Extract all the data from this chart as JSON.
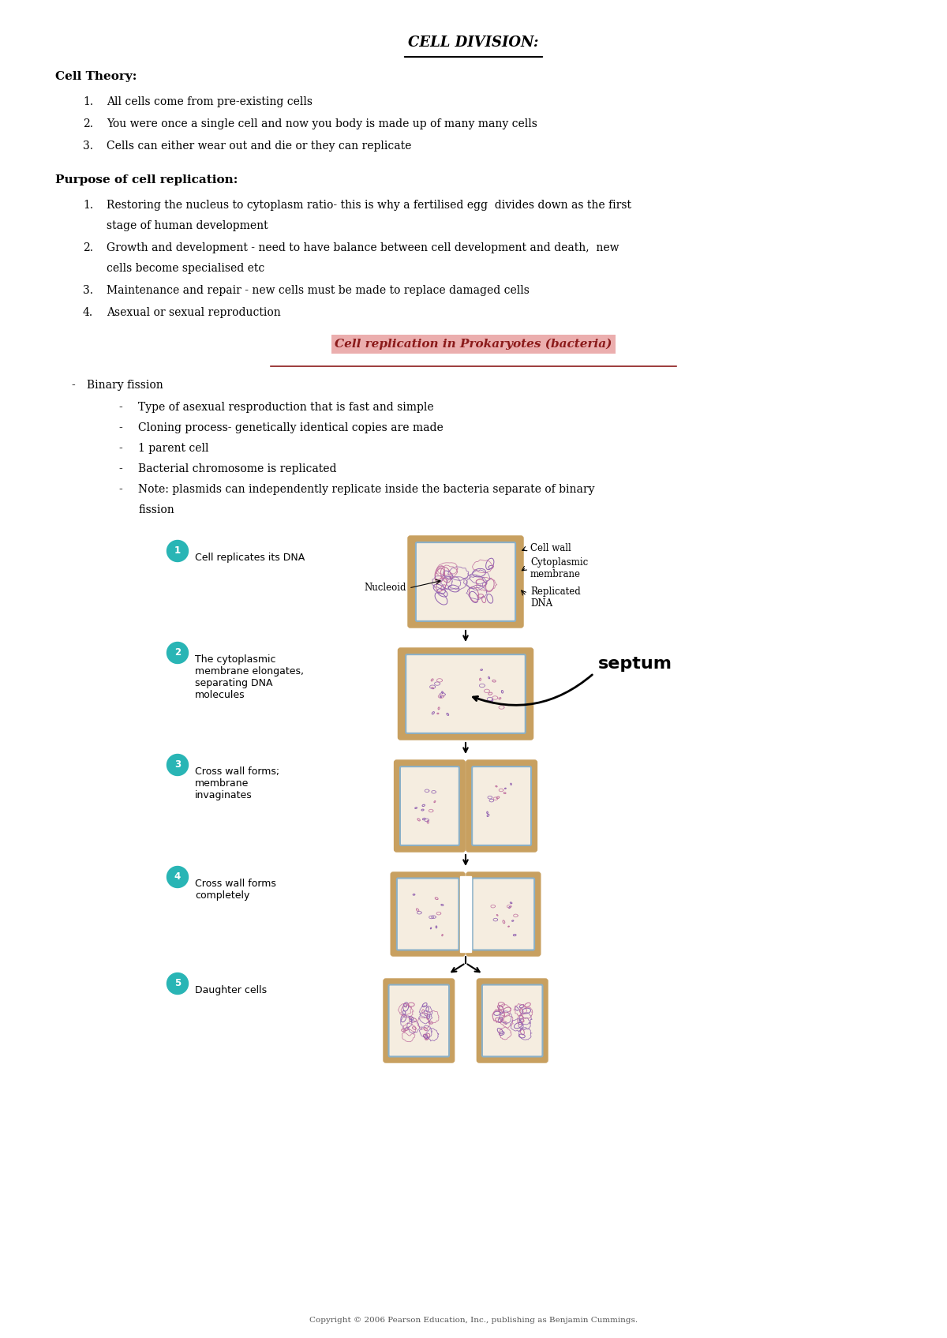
{
  "title": "CELL DIVISION:",
  "bg_color": "#ffffff",
  "cell_theory_header": "Cell Theory:",
  "cell_theory_items": [
    "All cells come from pre-existing cells",
    "You were once a single cell and now you body is made up of many many cells",
    "Cells can either wear out and die or they can replicate"
  ],
  "purpose_header": "Purpose of cell replication:",
  "purpose_items": [
    "Restoring the nucleus to cytoplasm ratio- this is why a fertilised egg  divides down as the first\nstage of human development",
    "Growth and development - need to have balance between cell development and death,  new\ncells become specialised etc",
    "Maintenance and repair - new cells must be made to replace damaged cells",
    "Asexual or sexual reproduction"
  ],
  "prokaryotes_title": "Cell replication in Prokaryotes (bacteria)",
  "prokaryotes_bg": "#e8a0a0",
  "binary_fission_header": "Binary fission",
  "binary_fission_items": [
    "Type of asexual resproduction that is fast and simple",
    "Cloning process- genetically identical copies are made",
    "1 parent cell",
    "Bacterial chromosome is replicated",
    "Note: plasmids can independently replicate inside the bacteria separate of binary\nfission"
  ],
  "step_labels": [
    "Cell replicates its DNA",
    "The cytoplasmic\nmembrane elongates,\nseparating DNA\nmolecules",
    "Cross wall forms;\nmembrane\ninvaginates",
    "Cross wall forms\ncompletely",
    "Daughter cells"
  ],
  "step_numbers": [
    "1",
    "2",
    "3",
    "4",
    "5"
  ],
  "step_circle_color": "#29b5b5",
  "cell_wall_color": "#c8a060",
  "cytoplasm_color": "#f5ede0",
  "membrane_color": "#8ab0c8",
  "dna_color1": "#9060b0",
  "dna_color2": "#c070a0",
  "copyright": "Copyright © 2006 Pearson Education, Inc., publishing as Benjamin Cummings."
}
